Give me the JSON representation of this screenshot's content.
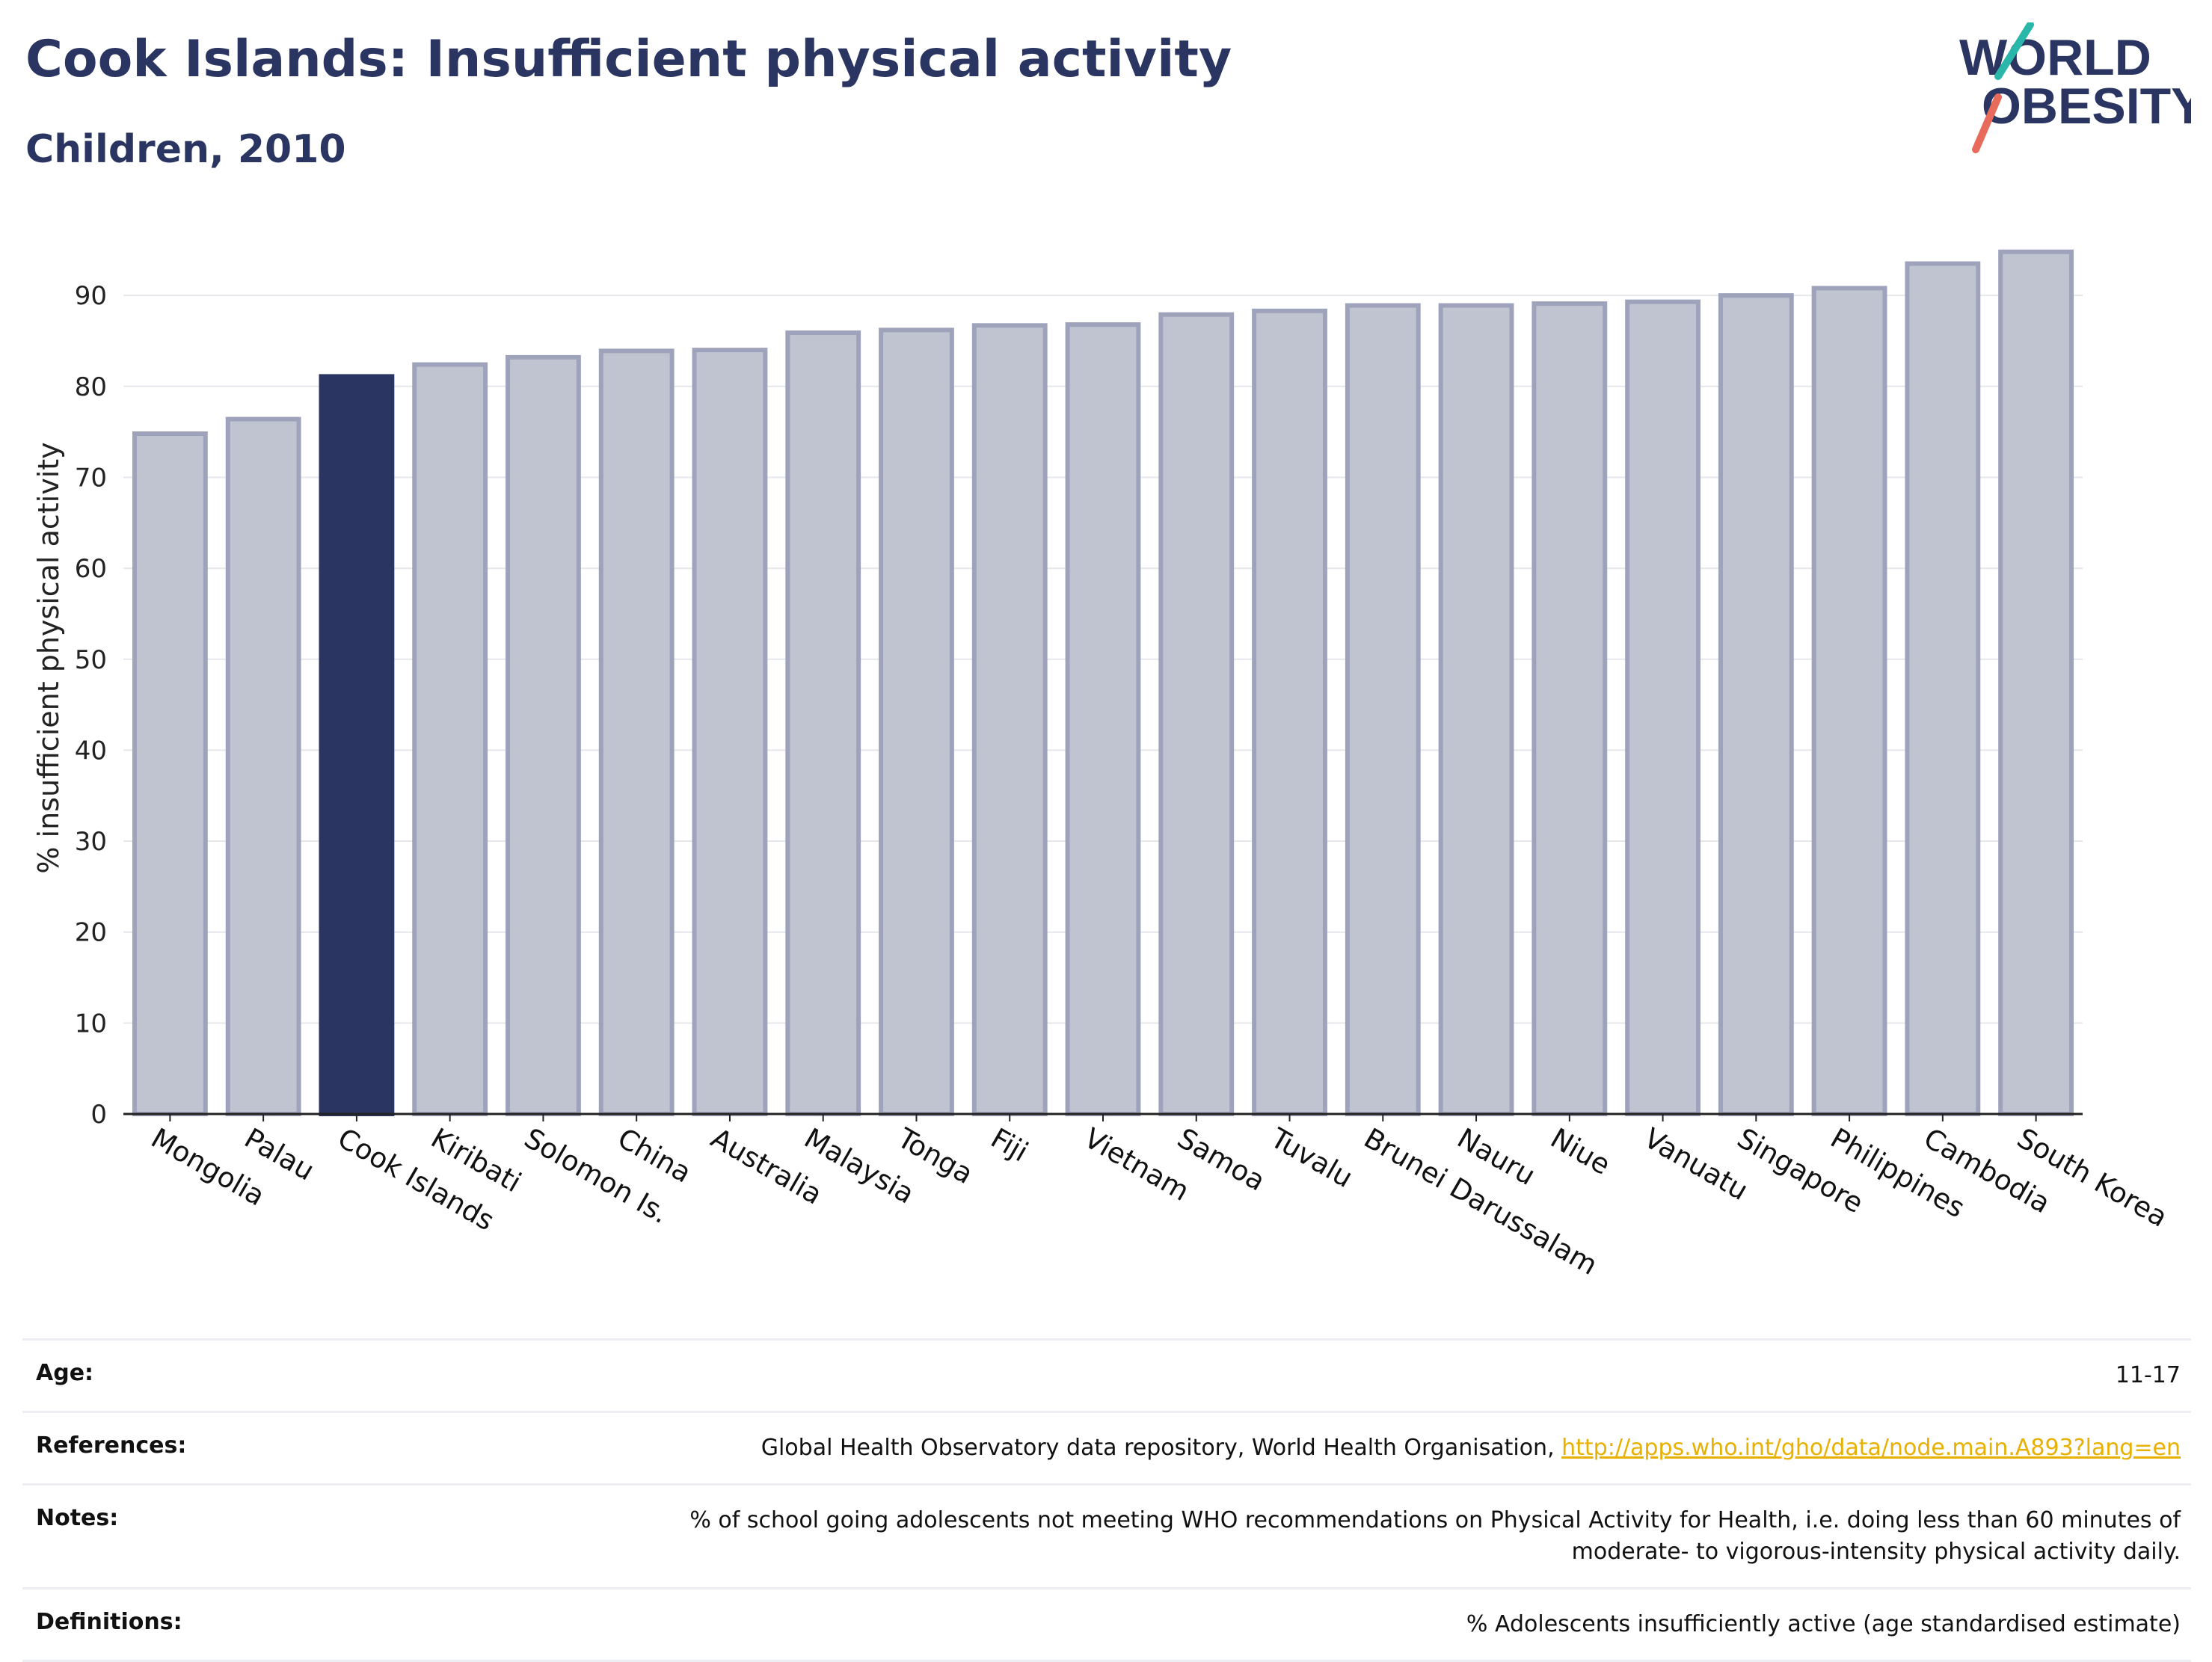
{
  "header": {
    "title": "Cook Islands: Insufficient physical activity",
    "subtitle": "Children, 2010"
  },
  "logo": {
    "line1": "WORLD",
    "line2": "OBESITY",
    "icon": "world-obesity-logo"
  },
  "colors": {
    "highlight": "#2b3562",
    "bar": "#c0c3d0",
    "bar_border": "#9ea3bb",
    "title": "#2b3562",
    "link": "#e8b000"
  },
  "chart_data": {
    "type": "bar",
    "ylabel": "% insufficient physical activity",
    "ylim": [
      0,
      97
    ],
    "yticks": [
      0,
      10,
      20,
      30,
      40,
      50,
      60,
      70,
      80,
      90
    ],
    "grid": true,
    "highlight": "Cook Islands",
    "categories": [
      "Mongolia",
      "Palau",
      "Cook Islands",
      "Kiribati",
      "Solomon Is.",
      "China",
      "Australia",
      "Malaysia",
      "Tonga",
      "Fiji",
      "Vietnam",
      "Samoa",
      "Tuvalu",
      "Brunei Darussalam",
      "Nauru",
      "Niue",
      "Vanuatu",
      "Singapore",
      "Philippines",
      "Cambodia",
      "South Korea"
    ],
    "values": [
      74.8,
      76.4,
      81.1,
      82.4,
      83.2,
      83.9,
      84.0,
      85.9,
      86.2,
      86.7,
      86.8,
      87.9,
      88.3,
      88.9,
      88.9,
      89.1,
      89.3,
      90.0,
      90.8,
      93.5,
      94.8
    ]
  },
  "meta": {
    "age_label": "Age:",
    "age_value": "11-17",
    "references_label": "References:",
    "references_text": "Global Health Observatory data repository, World Health Organisation, ",
    "references_link": "http://apps.who.int/gho/data/node.main.A893?lang=en",
    "notes_label": "Notes:",
    "notes_text": "% of school going adolescents not meeting WHO recommendations on Physical Activity for Health, i.e. doing less than 60 minutes of moderate- to vigorous-intensity physical activity daily.",
    "definitions_label": "Definitions:",
    "definitions_text": "% Adolescents insufficiently active (age standardised estimate)"
  }
}
